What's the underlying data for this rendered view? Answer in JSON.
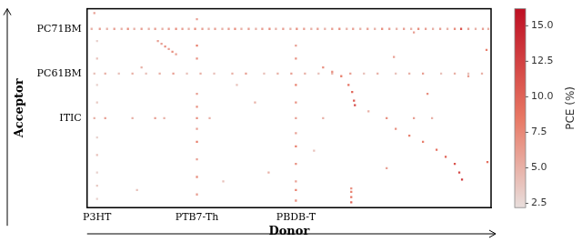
{
  "chart_data": {
    "type": "heatmap",
    "x_label": "Donor",
    "y_label": "Acceptor",
    "xlim": [
      0,
      445
    ],
    "ylim": [
      0,
      227
    ],
    "xticks": [
      {
        "value": 11,
        "label": "P3HT"
      },
      {
        "value": 121,
        "label": "PTB7-Th"
      },
      {
        "value": 230,
        "label": "PBDB-T"
      }
    ],
    "yticks": [
      {
        "value": 102,
        "label": "ITIC"
      },
      {
        "value": 153,
        "label": "PC61BM"
      },
      {
        "value": 204,
        "label": "PC71BM"
      }
    ],
    "grid": false,
    "colorbar": {
      "label": "PCE (%)",
      "range": [
        2.2,
        16.2
      ],
      "ticks": [
        2.5,
        {
          "value": 5,
          "label": "5.0"
        },
        7.5,
        {
          "value": 10,
          "label": "10.0"
        },
        12.5,
        {
          "value": 15,
          "label": "15.0"
        }
      ]
    },
    "cells": [
      [
        5,
        204,
        5
      ],
      [
        14,
        204,
        6
      ],
      [
        22,
        204,
        5
      ],
      [
        30,
        204,
        6
      ],
      [
        38,
        204,
        5
      ],
      [
        45,
        204,
        7
      ],
      [
        52,
        204,
        5
      ],
      [
        60,
        204,
        6
      ],
      [
        68,
        204,
        5
      ],
      [
        75,
        204,
        6
      ],
      [
        83,
        204,
        5
      ],
      [
        90,
        204,
        6
      ],
      [
        98,
        204,
        7
      ],
      [
        105,
        204,
        6
      ],
      [
        112,
        204,
        5
      ],
      [
        119,
        204,
        7
      ],
      [
        127,
        204,
        6
      ],
      [
        134,
        204,
        5
      ],
      [
        141,
        204,
        6
      ],
      [
        149,
        204,
        5
      ],
      [
        156,
        204,
        6
      ],
      [
        163,
        204,
        7
      ],
      [
        170,
        204,
        5
      ],
      [
        178,
        204,
        6
      ],
      [
        186,
        204,
        5
      ],
      [
        193,
        204,
        6
      ],
      [
        201,
        204,
        7
      ],
      [
        208,
        204,
        5
      ],
      [
        216,
        204,
        6
      ],
      [
        224,
        204,
        5
      ],
      [
        231,
        204,
        7
      ],
      [
        239,
        204,
        6
      ],
      [
        247,
        204,
        5
      ],
      [
        254,
        204,
        6
      ],
      [
        262,
        204,
        5
      ],
      [
        270,
        204,
        6
      ],
      [
        278,
        204,
        7
      ],
      [
        286,
        204,
        5
      ],
      [
        293,
        204,
        6
      ],
      [
        301,
        204,
        5
      ],
      [
        309,
        204,
        6
      ],
      [
        317,
        204,
        5
      ],
      [
        325,
        204,
        7
      ],
      [
        333,
        204,
        6
      ],
      [
        341,
        204,
        5
      ],
      [
        349,
        204,
        6
      ],
      [
        357,
        204,
        5
      ],
      [
        365,
        204,
        7
      ],
      [
        373,
        204,
        6
      ],
      [
        381,
        204,
        5
      ],
      [
        389,
        204,
        6
      ],
      [
        397,
        204,
        5
      ],
      [
        405,
        204,
        7
      ],
      [
        412,
        204,
        11
      ],
      [
        420,
        204,
        6
      ],
      [
        428,
        204,
        5
      ],
      [
        436,
        204,
        6
      ],
      [
        442,
        204,
        5
      ],
      [
        8,
        222,
        6
      ],
      [
        8,
        153,
        4
      ],
      [
        20,
        153,
        5
      ],
      [
        35,
        153,
        4
      ],
      [
        50,
        153,
        5
      ],
      [
        65,
        153,
        4
      ],
      [
        80,
        153,
        5
      ],
      [
        95,
        153,
        6
      ],
      [
        110,
        153,
        4
      ],
      [
        125,
        153,
        5
      ],
      [
        140,
        153,
        4
      ],
      [
        160,
        153,
        5
      ],
      [
        175,
        153,
        6
      ],
      [
        195,
        153,
        4
      ],
      [
        210,
        153,
        5
      ],
      [
        225,
        153,
        6
      ],
      [
        240,
        153,
        5
      ],
      [
        255,
        153,
        4
      ],
      [
        270,
        153,
        5
      ],
      [
        290,
        153,
        6
      ],
      [
        305,
        153,
        4
      ],
      [
        320,
        153,
        5
      ],
      [
        340,
        153,
        4
      ],
      [
        355,
        153,
        5
      ],
      [
        370,
        153,
        6
      ],
      [
        390,
        153,
        4
      ],
      [
        405,
        153,
        5
      ],
      [
        420,
        153,
        4
      ],
      [
        435,
        153,
        5
      ],
      [
        8,
        102,
        5
      ],
      [
        20,
        102,
        6
      ],
      [
        50,
        102,
        5
      ],
      [
        75,
        102,
        6
      ],
      [
        85,
        102,
        5
      ],
      [
        121,
        102,
        7
      ],
      [
        135,
        102,
        5
      ],
      [
        230,
        102,
        6
      ],
      [
        260,
        102,
        5
      ],
      [
        330,
        102,
        7
      ],
      [
        360,
        102,
        6
      ],
      [
        380,
        102,
        5
      ],
      [
        11,
        10,
        3
      ],
      [
        11,
        25,
        3.5
      ],
      [
        11,
        40,
        3
      ],
      [
        11,
        60,
        4
      ],
      [
        11,
        80,
        3
      ],
      [
        11,
        120,
        3.5
      ],
      [
        11,
        140,
        3
      ],
      [
        11,
        170,
        4
      ],
      [
        11,
        190,
        3
      ],
      [
        121,
        15,
        6
      ],
      [
        121,
        35,
        7
      ],
      [
        121,
        55,
        6
      ],
      [
        121,
        75,
        8
      ],
      [
        121,
        90,
        6
      ],
      [
        121,
        115,
        7
      ],
      [
        121,
        130,
        6
      ],
      [
        121,
        170,
        7
      ],
      [
        121,
        185,
        8
      ],
      [
        121,
        215,
        6
      ],
      [
        230,
        8,
        7
      ],
      [
        230,
        20,
        8
      ],
      [
        230,
        30,
        6
      ],
      [
        230,
        50,
        7
      ],
      [
        230,
        70,
        8
      ],
      [
        230,
        85,
        6
      ],
      [
        230,
        120,
        7
      ],
      [
        230,
        140,
        8
      ],
      [
        230,
        170,
        7
      ],
      [
        230,
        185,
        6
      ],
      [
        291,
        6,
        10
      ],
      [
        291,
        12,
        9
      ],
      [
        291,
        18,
        8
      ],
      [
        291,
        22,
        7
      ],
      [
        78,
        190,
        6
      ],
      [
        82,
        187,
        6
      ],
      [
        86,
        184,
        7
      ],
      [
        90,
        181,
        6
      ],
      [
        94,
        178,
        7
      ],
      [
        98,
        175,
        6
      ],
      [
        260,
        160,
        7
      ],
      [
        270,
        155,
        7
      ],
      [
        280,
        150,
        8
      ],
      [
        288,
        140,
        9
      ],
      [
        292,
        132,
        10
      ],
      [
        294,
        122,
        11
      ],
      [
        295,
        117,
        12
      ],
      [
        340,
        90,
        7
      ],
      [
        355,
        82,
        8
      ],
      [
        370,
        75,
        8
      ],
      [
        385,
        66,
        9
      ],
      [
        395,
        58,
        10
      ],
      [
        405,
        50,
        11
      ],
      [
        410,
        40,
        12
      ],
      [
        413,
        32,
        13
      ],
      [
        441,
        52,
        9
      ],
      [
        338,
        172,
        6
      ],
      [
        150,
        30,
        4
      ],
      [
        185,
        120,
        5
      ],
      [
        250,
        65,
        4
      ],
      [
        310,
        110,
        5
      ],
      [
        360,
        200,
        6
      ],
      [
        55,
        20,
        4
      ],
      [
        60,
        160,
        5
      ],
      [
        165,
        140,
        4
      ],
      [
        200,
        40,
        5
      ],
      [
        330,
        45,
        6
      ],
      [
        375,
        130,
        7
      ],
      [
        420,
        150,
        6
      ],
      [
        440,
        180,
        8
      ]
    ]
  }
}
